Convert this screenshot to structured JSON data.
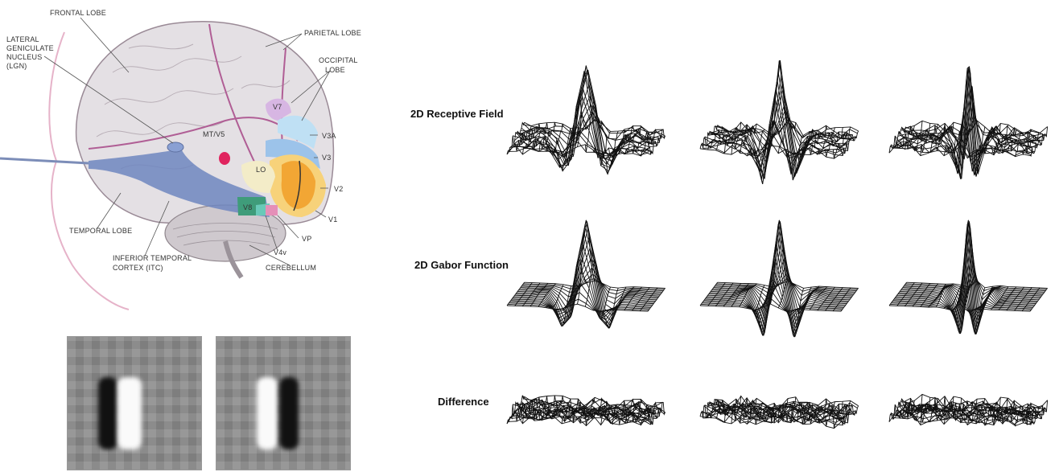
{
  "brain": {
    "labels": {
      "frontal_lobe": "FRONTAL LOBE",
      "lgn_1": "LATERAL",
      "lgn_2": "GENICULATE",
      "lgn_3": "NUCLEUS",
      "lgn_4": "(LGN)",
      "parietal_lobe": "PARIETAL LOBE",
      "occipital_1": "OCCIPITAL",
      "occipital_2": "LOBE",
      "v7": "V7",
      "mt_v5": "MT/V5",
      "v3a": "V3A",
      "v3": "V3",
      "lo": "LO",
      "v2": "V2",
      "v8": "V8",
      "v1": "V1",
      "temporal_lobe": "TEMPORAL LOBE",
      "vp": "VP",
      "v4v": "V4v",
      "itc_1": "INFERIOR TEMPORAL",
      "itc_2": "CORTEX (ITC)",
      "cerebellum": "CEREBELLUM"
    },
    "colors": {
      "v1": "#f2a634",
      "v2": "#f7d27a",
      "v3": "#9cc3ea",
      "v3a": "#bfe0f4",
      "v7": "#d7b6e3",
      "mt": "#e0245e",
      "lo": "#f3ecc8",
      "v8": "#3f9c7a",
      "v4v": "#69c9b8",
      "vp": "#e58fb8",
      "optic": "#6e86c0",
      "outline": "#b98aa3"
    }
  },
  "receptive_field_images": [
    {
      "name": "patch-left"
    },
    {
      "name": "patch-right"
    }
  ],
  "plots": {
    "rows": [
      {
        "label": "2D  Receptive Field"
      },
      {
        "label": "2D  Gabor Function"
      },
      {
        "label": "Difference"
      }
    ]
  }
}
